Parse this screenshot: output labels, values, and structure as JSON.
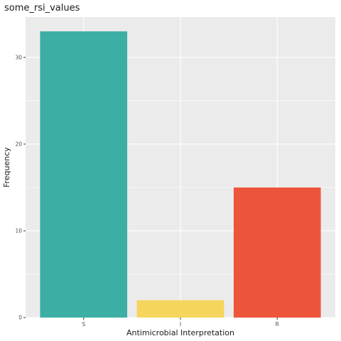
{
  "chart_data": {
    "type": "bar",
    "title": "some_rsi_values",
    "xlabel": "Antimicrobial Interpretation",
    "ylabel": "Frequency",
    "categories": [
      "S",
      "I",
      "R"
    ],
    "values": [
      33,
      2,
      15
    ],
    "colors": [
      "#3CAEA3",
      "#F6D55C",
      "#ED553B"
    ],
    "ylim": [
      0,
      34.65
    ],
    "yticks": [
      0,
      10,
      20,
      30
    ],
    "grid": true,
    "legend": "none",
    "panel_background": "#EBEBEB",
    "grid_color": "#FFFFFF"
  }
}
